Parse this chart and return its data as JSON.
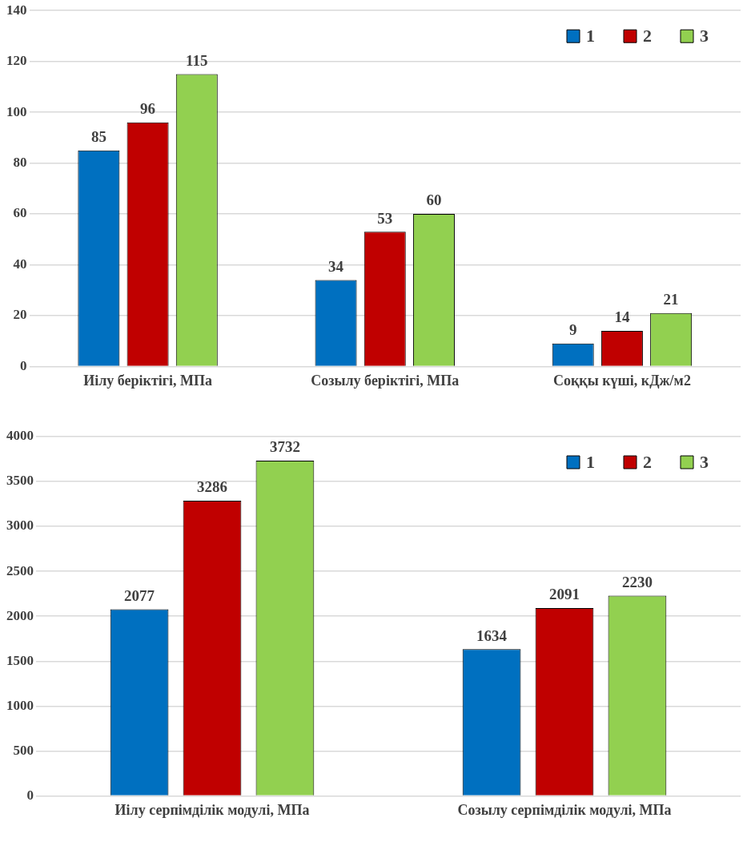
{
  "chart_data": [
    {
      "type": "bar",
      "categories": [
        "Иілу беріктігі, МПа",
        "Созылу беріктігі, МПа",
        "Соққы күші, кДж/м2"
      ],
      "series": [
        {
          "name": "1",
          "color": "#0070c0",
          "values": [
            85,
            34,
            9
          ]
        },
        {
          "name": "2",
          "color": "#c00000",
          "values": [
            96,
            53,
            14
          ]
        },
        {
          "name": "3",
          "color": "#92d050",
          "values": [
            115,
            60,
            21
          ]
        }
      ],
      "ylim": [
        0,
        140
      ],
      "yticks": [
        0,
        20,
        40,
        60,
        80,
        100,
        120,
        140
      ],
      "grid": "y",
      "legend": "top right",
      "data_labels": true
    },
    {
      "type": "bar",
      "categories": [
        "Иілу серпімділік модулі, МПа",
        "Созылу серпімділік модулі, МПа"
      ],
      "series": [
        {
          "name": "1",
          "color": "#0070c0",
          "values": [
            2077,
            1634
          ]
        },
        {
          "name": "2",
          "color": "#c00000",
          "values": [
            3286,
            2091
          ]
        },
        {
          "name": "3",
          "color": "#92d050",
          "values": [
            3732,
            2230
          ]
        }
      ],
      "ylim": [
        0,
        4000
      ],
      "yticks": [
        0,
        500,
        1000,
        1500,
        2000,
        2500,
        3000,
        3500,
        4000
      ],
      "grid": "y",
      "legend": "top right",
      "data_labels": true
    }
  ]
}
